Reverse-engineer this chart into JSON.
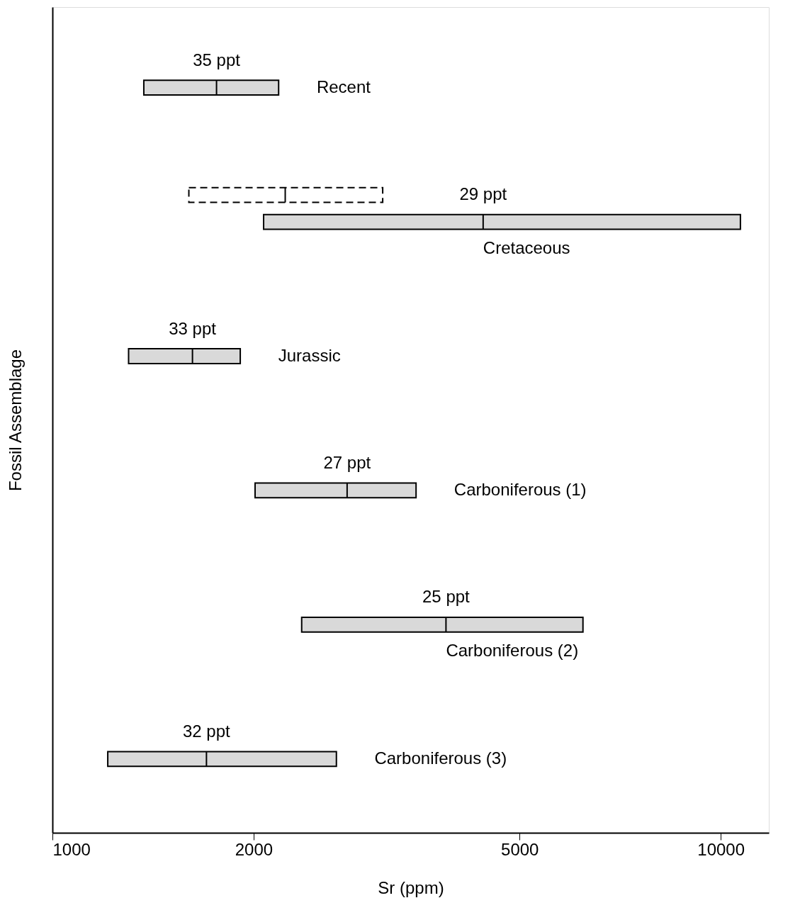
{
  "chart_data": {
    "type": "box",
    "orientation": "horizontal",
    "log": "x",
    "xlabel": "Sr (ppm)",
    "ylabel": "Fossil Assemblage",
    "categories": [
      "Recent",
      "Cretaceous",
      "Jurassic",
      "Carboniferous (1)",
      "Carboniferous (2)",
      "Carboniferous (3)"
    ],
    "series": [
      {
        "color": "#d9d9d9",
        "line_style": "solid",
        "boxes": [
          {
            "low": 1370,
            "q1": 1370,
            "median": 1760,
            "q3": 2180,
            "high": 2180
          },
          {
            "low": 2070,
            "q1": 2070,
            "median": 4410,
            "q3": 10700,
            "high": 10700
          },
          {
            "low": 1300,
            "q1": 1300,
            "median": 1620,
            "q3": 1910,
            "high": 1910
          },
          {
            "low": 2010,
            "q1": 2010,
            "median": 2760,
            "q3": 3500,
            "high": 3500
          },
          {
            "low": 2360,
            "q1": 2360,
            "median": 3880,
            "q3": 6220,
            "high": 6220
          },
          {
            "low": 1210,
            "q1": 1210,
            "median": 1700,
            "q3": 2660,
            "high": 2660
          }
        ]
      },
      {
        "color": "#ffffff",
        "line_style": "dashed",
        "boxes": [
          null,
          {
            "low": 1600,
            "q1": 1600,
            "median": 2230,
            "q3": 3120,
            "high": 3120
          },
          null,
          null,
          null,
          null
        ]
      }
    ],
    "annotations": [
      "35 ppt",
      "29 ppt",
      "33 ppt",
      "27 ppt",
      "25 ppt",
      "32 ppt"
    ],
    "xlim": [
      1000,
      11800
    ],
    "xticks": [
      1000,
      2000,
      5000,
      10000
    ],
    "grid": false
  }
}
